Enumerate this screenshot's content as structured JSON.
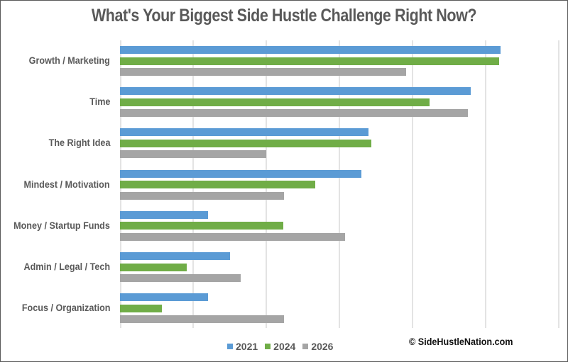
{
  "chart_data": {
    "type": "bar",
    "orientation": "horizontal",
    "title": "What's Your Biggest Side Hustle Challenge Right Now?",
    "xlabel": "",
    "ylabel": "",
    "x_tick_labels_visible": false,
    "grid": true,
    "xlim": [
      0,
      6
    ],
    "units": "gridline units (no axis labels shown)",
    "categories": [
      "Growth / Marketing",
      "Time",
      "The Right Idea",
      "Mindest / Motivation",
      "Money / Startup Funds",
      "Admin / Legal / Tech",
      "Focus / Organization"
    ],
    "series": [
      {
        "name": "2021",
        "color": "#5b9bd5",
        "values": [
          5.2,
          4.8,
          3.4,
          3.3,
          1.2,
          1.5,
          1.2
        ]
      },
      {
        "name": "2024",
        "color": "#70ad47",
        "values": [
          5.18,
          4.23,
          3.44,
          2.67,
          2.23,
          0.91,
          0.57
        ]
      },
      {
        "name": "2026",
        "color": "#a5a5a5",
        "values": [
          3.91,
          4.76,
          2.0,
          2.24,
          3.08,
          1.65,
          2.24
        ]
      }
    ],
    "legend_position": "bottom"
  },
  "title": "What's Your Biggest Side Hustle Challenge Right Now?",
  "legend": [
    {
      "label": "2021",
      "color": "#5b9bd5"
    },
    {
      "label": "2024",
      "color": "#70ad47"
    },
    {
      "label": "2026",
      "color": "#a5a5a5"
    }
  ],
  "credit": "© SideHustleNation.com"
}
